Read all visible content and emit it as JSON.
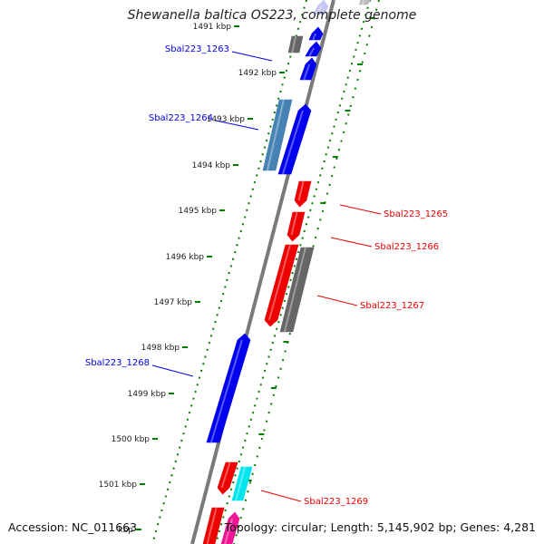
{
  "title": "Shewanella baltica OS223, complete genome",
  "footer": {
    "accession": "Accession: NC_011663",
    "summary": "Topology: circular; Length: 5,145,902 bp; Genes: 4,281"
  },
  "colors": {
    "forward_cds": "#0000ee",
    "reverse_cds": "#ee0000",
    "gray_feature": "#666666",
    "steelblue_feature": "#4682b4",
    "cyan_feature": "#00e5ee",
    "magenta_feature": "#ee1493",
    "backbone": "#808080",
    "ticks": "#008000"
  },
  "ticks": [
    {
      "label": "1491 kbp"
    },
    {
      "label": "1492 kbp"
    },
    {
      "label": "1493 kbp"
    },
    {
      "label": "1494 kbp"
    },
    {
      "label": "1495 kbp"
    },
    {
      "label": "1496 kbp"
    },
    {
      "label": "1497 kbp"
    },
    {
      "label": "1498 kbp"
    },
    {
      "label": "1499 kbp"
    },
    {
      "label": "1500 kbp"
    },
    {
      "label": "1501 kbp"
    },
    {
      "label": "kbp"
    }
  ],
  "gene_labels": [
    {
      "text": "Sbal223_1263",
      "strand": "forward"
    },
    {
      "text": "Sbal223_1264",
      "strand": "forward"
    },
    {
      "text": "Sbal223_1265",
      "strand": "reverse"
    },
    {
      "text": "Sbal223_1266",
      "strand": "reverse"
    },
    {
      "text": "Sbal223_1267",
      "strand": "reverse"
    },
    {
      "text": "Sbal223_1268",
      "strand": "forward"
    },
    {
      "text": "Sbal223_1269",
      "strand": "reverse"
    }
  ]
}
